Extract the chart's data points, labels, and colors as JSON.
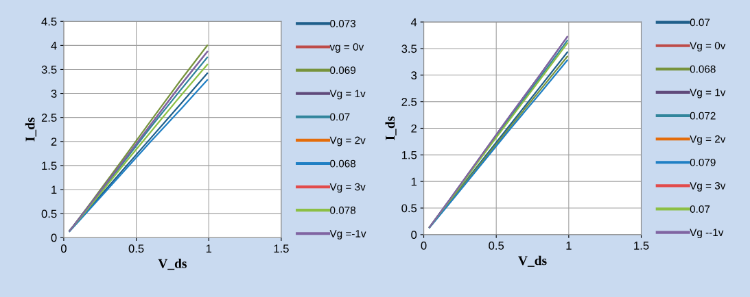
{
  "chart_data": [
    {
      "type": "line",
      "xlabel": "V_ds",
      "ylabel": "I_ds",
      "xlim": [
        0,
        1.5
      ],
      "xticks": [
        0,
        0.5,
        1,
        1.5
      ],
      "ylim": [
        0,
        4.5
      ],
      "yticks": [
        0,
        0.5,
        1,
        1.5,
        2,
        2.5,
        3,
        3.5,
        4,
        4.5
      ],
      "grid": true,
      "legend": "right",
      "x": [
        0.04,
        0.2,
        0.4,
        0.6,
        0.8,
        0.99
      ],
      "series": [
        {
          "name": "0.073",
          "color": "#1f5f8b",
          "values": [
            0.15,
            0.69,
            1.38,
            2.07,
            2.76,
            3.42
          ]
        },
        {
          "name": "vg = 0v",
          "color": "#be4b48",
          "values": [
            null,
            null,
            null,
            null,
            null,
            null
          ]
        },
        {
          "name": "0.069",
          "color": "#77933c",
          "values": [
            0.14,
            0.78,
            1.6,
            2.43,
            3.25,
            4.0
          ]
        },
        {
          "name": "Vg = 1v",
          "color": "#604a7b",
          "values": [
            0.14,
            0.76,
            1.55,
            2.35,
            3.15,
            3.87
          ]
        },
        {
          "name": "0.07",
          "color": "#31859c",
          "values": [
            0.14,
            0.75,
            1.52,
            2.3,
            3.05,
            3.75
          ]
        },
        {
          "name": "Vg = 2v",
          "color": "#e46c0a",
          "values": [
            null,
            null,
            null,
            null,
            null,
            null
          ]
        },
        {
          "name": "0.068",
          "color": "#1f7fc4",
          "values": [
            0.13,
            0.66,
            1.33,
            2.0,
            2.65,
            3.28
          ]
        },
        {
          "name": "Vg = 3v",
          "color": "#e24b4b",
          "values": [
            null,
            null,
            null,
            null,
            null,
            null
          ]
        },
        {
          "name": "0.078",
          "color": "#8cbf44",
          "values": [
            0.14,
            0.72,
            1.47,
            2.2,
            2.93,
            3.6
          ]
        },
        {
          "name": "Vg =-1v",
          "color": "#8064a2",
          "values": [
            0.14,
            0.76,
            1.55,
            2.35,
            3.15,
            3.87
          ]
        }
      ]
    },
    {
      "type": "line",
      "xlabel": "V_ds",
      "ylabel": "I_ds",
      "xlim": [
        0,
        1.5
      ],
      "xticks": [
        0,
        0.5,
        1,
        1.5
      ],
      "ylim": [
        0,
        4
      ],
      "yticks": [
        0,
        0.5,
        1,
        1.5,
        2,
        2.5,
        3,
        3.5,
        4
      ],
      "grid": true,
      "legend": "right",
      "x": [
        0.04,
        0.2,
        0.4,
        0.6,
        0.8,
        0.99
      ],
      "series": [
        {
          "name": "0.07",
          "color": "#1f5f8b",
          "values": [
            0.14,
            0.69,
            1.39,
            2.08,
            2.77,
            3.43
          ]
        },
        {
          "name": "Vg = 0v",
          "color": "#be4b48",
          "values": [
            null,
            null,
            null,
            null,
            null,
            null
          ]
        },
        {
          "name": "0.068",
          "color": "#77933c",
          "values": [
            0.14,
            0.68,
            1.36,
            2.04,
            2.71,
            3.35
          ]
        },
        {
          "name": "Vg = 1v",
          "color": "#604a7b",
          "values": [
            0.14,
            0.74,
            1.5,
            2.26,
            3.0,
            3.72
          ]
        },
        {
          "name": "0.072",
          "color": "#31859c",
          "values": [
            0.14,
            0.73,
            1.48,
            2.22,
            2.95,
            3.65
          ]
        },
        {
          "name": "Vg = 2v",
          "color": "#e46c0a",
          "values": [
            null,
            null,
            null,
            null,
            null,
            null
          ]
        },
        {
          "name": "0.079",
          "color": "#1f7fc4",
          "values": [
            0.13,
            0.66,
            1.33,
            2.0,
            2.65,
            3.28
          ]
        },
        {
          "name": "Vg = 3v",
          "color": "#e24b4b",
          "values": [
            null,
            null,
            null,
            null,
            null,
            null
          ]
        },
        {
          "name": "0.07",
          "color": "#8cbf44",
          "values": [
            0.14,
            0.72,
            1.46,
            2.19,
            2.91,
            3.6
          ]
        },
        {
          "name": "Vg --1v",
          "color": "#8064a2",
          "values": [
            0.14,
            0.74,
            1.5,
            2.26,
            3.0,
            3.72
          ]
        }
      ]
    }
  ]
}
